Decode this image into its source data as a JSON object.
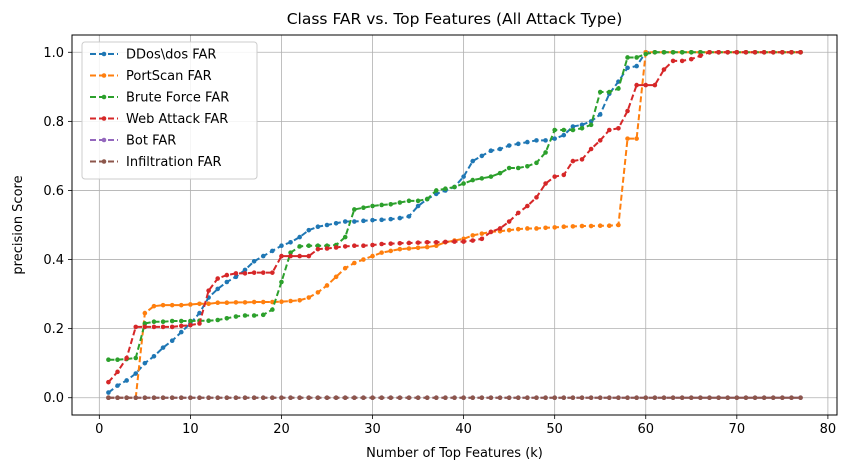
{
  "chart_data": {
    "type": "line",
    "title": "Class FAR vs. Top Features (All Attack Type)",
    "xlabel": "Number of Top Features (k)",
    "ylabel": "precision Score",
    "xlim": [
      -3,
      81
    ],
    "ylim": [
      -0.05,
      1.05
    ],
    "xticks": [
      0,
      10,
      20,
      30,
      40,
      50,
      60,
      70,
      80
    ],
    "yticks": [
      0.0,
      0.2,
      0.4,
      0.6,
      0.8,
      1.0
    ],
    "ytick_labels": [
      "0.0",
      "0.2",
      "0.4",
      "0.6",
      "0.8",
      "1.0"
    ],
    "grid": true,
    "legend_position": "top-left",
    "line_style": "dashed",
    "marker": "circle",
    "x": [
      1,
      2,
      3,
      4,
      5,
      6,
      7,
      8,
      9,
      10,
      11,
      12,
      13,
      14,
      15,
      16,
      17,
      18,
      19,
      20,
      21,
      22,
      23,
      24,
      25,
      26,
      27,
      28,
      29,
      30,
      31,
      32,
      33,
      34,
      35,
      36,
      37,
      38,
      39,
      40,
      41,
      42,
      43,
      44,
      45,
      46,
      47,
      48,
      49,
      50,
      51,
      52,
      53,
      54,
      55,
      56,
      57,
      58,
      59,
      60,
      61,
      62,
      63,
      64,
      65,
      66,
      67,
      68,
      69,
      70,
      71,
      72,
      73,
      74,
      75,
      76,
      77
    ],
    "series": [
      {
        "name": "DDos\\dos FAR",
        "color": "#1f77b4",
        "values": [
          0.015,
          0.035,
          0.05,
          0.07,
          0.1,
          0.12,
          0.145,
          0.165,
          0.19,
          0.215,
          0.245,
          0.29,
          0.315,
          0.335,
          0.35,
          0.37,
          0.395,
          0.41,
          0.425,
          0.44,
          0.45,
          0.465,
          0.485,
          0.495,
          0.5,
          0.505,
          0.51,
          0.51,
          0.512,
          0.514,
          0.515,
          0.517,
          0.52,
          0.525,
          0.555,
          0.575,
          0.59,
          0.6,
          0.61,
          0.64,
          0.685,
          0.7,
          0.715,
          0.72,
          0.73,
          0.735,
          0.74,
          0.745,
          0.745,
          0.75,
          0.76,
          0.785,
          0.79,
          0.8,
          0.82,
          0.88,
          0.915,
          0.955,
          0.96,
          1.0,
          1.0,
          1.0,
          1.0,
          1.0,
          1.0,
          1.0,
          1.0,
          1.0,
          1.0,
          1.0,
          1.0,
          1.0,
          1.0,
          1.0,
          1.0,
          1.0,
          1.0
        ]
      },
      {
        "name": "PortScan FAR",
        "color": "#ff7f0e",
        "values": [
          0.0,
          0.0,
          0.0,
          0.0,
          0.245,
          0.265,
          0.268,
          0.268,
          0.268,
          0.27,
          0.272,
          0.272,
          0.275,
          0.275,
          0.276,
          0.276,
          0.277,
          0.277,
          0.277,
          0.278,
          0.28,
          0.282,
          0.29,
          0.305,
          0.325,
          0.35,
          0.375,
          0.39,
          0.4,
          0.41,
          0.42,
          0.425,
          0.43,
          0.432,
          0.434,
          0.436,
          0.44,
          0.45,
          0.455,
          0.46,
          0.47,
          0.475,
          0.48,
          0.482,
          0.485,
          0.488,
          0.49,
          0.49,
          0.492,
          0.493,
          0.495,
          0.496,
          0.497,
          0.497,
          0.498,
          0.498,
          0.5,
          0.75,
          0.75,
          1.0,
          1.0,
          1.0,
          1.0,
          1.0,
          1.0,
          1.0,
          1.0,
          1.0,
          1.0,
          1.0,
          1.0,
          1.0,
          1.0,
          1.0,
          1.0,
          1.0,
          1.0
        ]
      },
      {
        "name": "Brute Force FAR",
        "color": "#2ca02c",
        "values": [
          0.11,
          0.11,
          0.112,
          0.115,
          0.215,
          0.22,
          0.22,
          0.222,
          0.222,
          0.222,
          0.223,
          0.223,
          0.225,
          0.23,
          0.235,
          0.238,
          0.238,
          0.24,
          0.255,
          0.335,
          0.42,
          0.438,
          0.44,
          0.44,
          0.44,
          0.442,
          0.465,
          0.545,
          0.55,
          0.555,
          0.558,
          0.56,
          0.565,
          0.57,
          0.57,
          0.575,
          0.6,
          0.605,
          0.61,
          0.62,
          0.63,
          0.635,
          0.64,
          0.65,
          0.665,
          0.665,
          0.67,
          0.68,
          0.71,
          0.775,
          0.775,
          0.775,
          0.78,
          0.79,
          0.885,
          0.885,
          0.895,
          0.985,
          0.985,
          0.995,
          1.0,
          1.0,
          1.0,
          1.0,
          1.0,
          1.0,
          1.0,
          1.0,
          1.0,
          1.0,
          1.0,
          1.0,
          1.0,
          1.0,
          1.0,
          1.0,
          1.0
        ]
      },
      {
        "name": "Web Attack FAR",
        "color": "#d62728",
        "values": [
          0.045,
          0.075,
          0.115,
          0.205,
          0.205,
          0.205,
          0.205,
          0.205,
          0.208,
          0.21,
          0.215,
          0.31,
          0.345,
          0.355,
          0.36,
          0.36,
          0.362,
          0.362,
          0.362,
          0.41,
          0.41,
          0.41,
          0.41,
          0.43,
          0.432,
          0.435,
          0.438,
          0.44,
          0.44,
          0.442,
          0.445,
          0.446,
          0.447,
          0.448,
          0.449,
          0.45,
          0.45,
          0.451,
          0.452,
          0.452,
          0.455,
          0.46,
          0.48,
          0.49,
          0.51,
          0.535,
          0.555,
          0.58,
          0.62,
          0.64,
          0.645,
          0.685,
          0.69,
          0.72,
          0.745,
          0.775,
          0.78,
          0.83,
          0.905,
          0.905,
          0.905,
          0.95,
          0.975,
          0.975,
          0.98,
          0.99,
          1.0,
          1.0,
          1.0,
          1.0,
          1.0,
          1.0,
          1.0,
          1.0,
          1.0,
          1.0,
          1.0
        ]
      },
      {
        "name": "Bot FAR",
        "color": "#9467bd",
        "values": [
          0,
          0,
          0,
          0,
          0,
          0,
          0,
          0,
          0,
          0,
          0,
          0,
          0,
          0,
          0,
          0,
          0,
          0,
          0,
          0,
          0,
          0,
          0,
          0,
          0,
          0,
          0,
          0,
          0,
          0,
          0,
          0,
          0,
          0,
          0,
          0,
          0,
          0,
          0,
          0,
          0,
          0,
          0,
          0,
          0,
          0,
          0,
          0,
          0,
          0,
          0,
          0,
          0,
          0,
          0,
          0,
          0,
          0,
          0,
          0,
          0,
          0,
          0,
          0,
          0,
          0,
          0,
          0,
          0,
          0,
          0,
          0,
          0,
          0,
          0,
          0,
          0
        ]
      },
      {
        "name": "Infiltration FAR",
        "color": "#8c564b",
        "values": [
          0,
          0,
          0,
          0,
          0,
          0,
          0,
          0,
          0,
          0,
          0,
          0,
          0,
          0,
          0,
          0,
          0,
          0,
          0,
          0,
          0,
          0,
          0,
          0,
          0,
          0,
          0,
          0,
          0,
          0,
          0,
          0,
          0,
          0,
          0,
          0,
          0,
          0,
          0,
          0,
          0,
          0,
          0,
          0,
          0,
          0,
          0,
          0,
          0,
          0,
          0,
          0,
          0,
          0,
          0,
          0,
          0,
          0,
          0,
          0,
          0,
          0,
          0,
          0,
          0,
          0,
          0,
          0,
          0,
          0,
          0,
          0,
          0,
          0,
          0,
          0,
          0
        ]
      }
    ]
  }
}
